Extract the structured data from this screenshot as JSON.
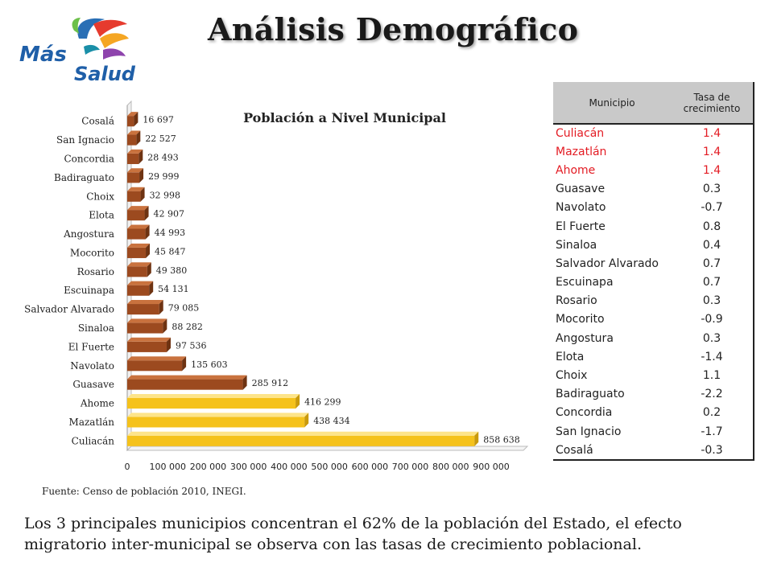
{
  "logo": {
    "text_line1": "Más",
    "text_line2": "Salud"
  },
  "title": "Análisis Demográfico",
  "chart_data": {
    "type": "bar",
    "orientation": "horizontal",
    "title": "Población a Nivel Municipal",
    "categories": [
      "Culiacán",
      "Mazatlán",
      "Ahome",
      "Guasave",
      "Navolato",
      "El Fuerte",
      "Sinaloa",
      "Salvador Alvarado",
      "Escuinapa",
      "Rosario",
      "Mocorito",
      "Angostura",
      "Elota",
      "Choix",
      "Badiraguato",
      "Concordia",
      "San Ignacio",
      "Cosalá"
    ],
    "values": [
      858638,
      438434,
      416299,
      285912,
      135603,
      97536,
      88282,
      79085,
      54131,
      49380,
      45847,
      44993,
      42907,
      32998,
      29999,
      28493,
      22527,
      16697
    ],
    "value_labels": [
      "858 638",
      "438 434",
      "416 299",
      "285 912",
      "135 603",
      "97 536",
      "88 282",
      "79 085",
      "54 131",
      "49 380",
      "45 847",
      "44 993",
      "42 907",
      "32 998",
      "29 999",
      "28 493",
      "22 527",
      "16 697"
    ],
    "highlight_count": 3,
    "colors": {
      "highlight": "#f5c21b",
      "highlight_top": "#fde48a",
      "highlight_side": "#c99a0c",
      "normal": "#9c4a1f",
      "normal_top": "#c9723e",
      "normal_side": "#6e3312"
    },
    "xlim": [
      0,
      900000
    ],
    "xticks": [
      "0",
      "100 000",
      "200 000",
      "300 000",
      "400 000",
      "500 000",
      "600 000",
      "700 000",
      "800 000",
      "900 000"
    ],
    "grid": false,
    "legend": "none"
  },
  "source": "Fuente: Censo de población 2010, INEGI.",
  "table": {
    "headers": {
      "municipio": "Municipio",
      "tasa": "Tasa de crecimiento"
    },
    "rows": [
      {
        "municipio": "Culiacán",
        "tasa": "1.4",
        "highlight": true
      },
      {
        "municipio": "Mazatlán",
        "tasa": "1.4",
        "highlight": true
      },
      {
        "municipio": "Ahome",
        "tasa": "1.4",
        "highlight": true
      },
      {
        "municipio": "Guasave",
        "tasa": "0.3"
      },
      {
        "municipio": "Navolato",
        "tasa": "-0.7"
      },
      {
        "municipio": "El Fuerte",
        "tasa": "0.8"
      },
      {
        "municipio": "Sinaloa",
        "tasa": "0.4"
      },
      {
        "municipio": "Salvador Alvarado",
        "tasa": "0.7"
      },
      {
        "municipio": "Escuinapa",
        "tasa": "0.7"
      },
      {
        "municipio": "Rosario",
        "tasa": "0.3"
      },
      {
        "municipio": "Mocorito",
        "tasa": "-0.9"
      },
      {
        "municipio": "Angostura",
        "tasa": "0.3"
      },
      {
        "municipio": "Elota",
        "tasa": "-1.4"
      },
      {
        "municipio": "Choix",
        "tasa": "1.1"
      },
      {
        "municipio": "Badiraguato",
        "tasa": "-2.2"
      },
      {
        "municipio": "Concordia",
        "tasa": "0.2"
      },
      {
        "municipio": "San Ignacio",
        "tasa": "-1.7"
      },
      {
        "municipio": "Cosalá",
        "tasa": "-0.3"
      }
    ]
  },
  "conclusion": "Los 3 principales municipios concentran el 62% de la población del Estado, el efecto migratorio inter-municipal se observa con las tasas de crecimiento poblacional."
}
